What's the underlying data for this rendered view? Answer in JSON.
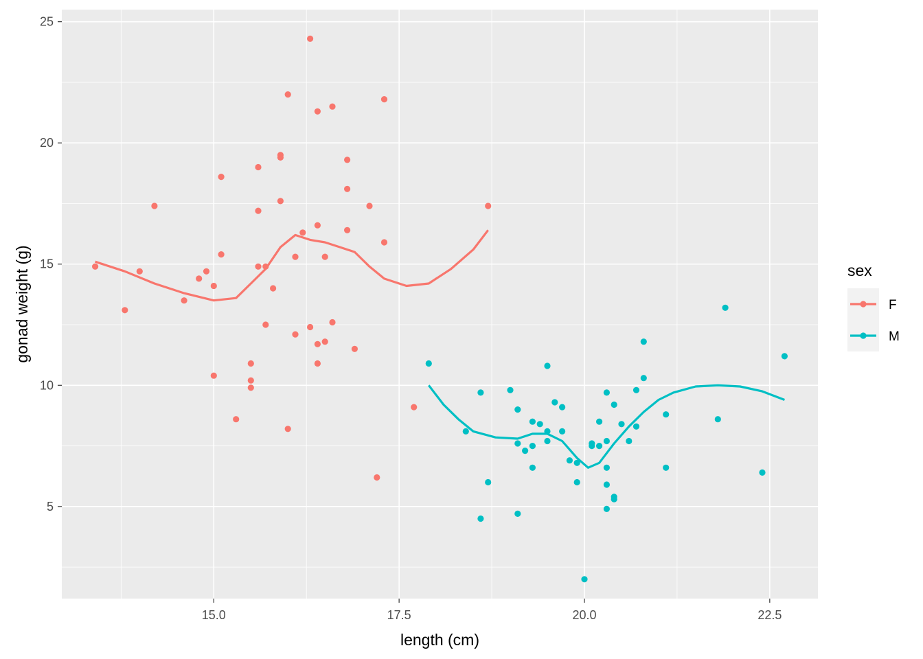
{
  "chart_data": {
    "type": "scatter",
    "xlabel": "length (cm)",
    "ylabel": "gonad weight (g)",
    "xlim": [
      12.95,
      23.15
    ],
    "ylim": [
      1.2,
      25.5
    ],
    "x_major_ticks": [
      15.0,
      17.5,
      20.0,
      22.5
    ],
    "x_tick_labels": [
      "15.0",
      "17.5",
      "20.0",
      "22.5"
    ],
    "x_minor_ticks": [
      13.75,
      16.25,
      18.75,
      21.25
    ],
    "y_major_ticks": [
      5,
      10,
      15,
      20,
      25
    ],
    "y_tick_labels": [
      "5",
      "10",
      "15",
      "20",
      "25"
    ],
    "y_minor_ticks": [
      2.5,
      7.5,
      12.5,
      17.5,
      22.5
    ],
    "grid": true,
    "panel_background": "#ebebeb",
    "legend": {
      "title": "sex",
      "placement": "right",
      "entries": [
        "F",
        "M"
      ]
    },
    "series": [
      {
        "name": "F",
        "color": "#F8766D",
        "points": [
          [
            13.4,
            14.9
          ],
          [
            13.8,
            13.1
          ],
          [
            14.0,
            14.7
          ],
          [
            14.2,
            17.4
          ],
          [
            14.6,
            13.5
          ],
          [
            14.8,
            14.4
          ],
          [
            14.9,
            14.7
          ],
          [
            15.0,
            14.1
          ],
          [
            15.0,
            10.4
          ],
          [
            15.1,
            18.6
          ],
          [
            15.1,
            15.4
          ],
          [
            15.3,
            8.6
          ],
          [
            15.5,
            10.9
          ],
          [
            15.5,
            10.2
          ],
          [
            15.5,
            9.9
          ],
          [
            15.6,
            19.0
          ],
          [
            15.6,
            17.2
          ],
          [
            15.6,
            14.9
          ],
          [
            15.7,
            14.9
          ],
          [
            15.7,
            12.5
          ],
          [
            15.8,
            14.0
          ],
          [
            15.9,
            19.5
          ],
          [
            15.9,
            19.4
          ],
          [
            15.9,
            17.6
          ],
          [
            16.0,
            22.0
          ],
          [
            16.0,
            8.2
          ],
          [
            16.1,
            15.3
          ],
          [
            16.1,
            12.1
          ],
          [
            16.2,
            16.3
          ],
          [
            16.3,
            24.3
          ],
          [
            16.3,
            12.4
          ],
          [
            16.4,
            21.3
          ],
          [
            16.4,
            16.6
          ],
          [
            16.4,
            11.7
          ],
          [
            16.4,
            10.9
          ],
          [
            16.5,
            15.3
          ],
          [
            16.5,
            11.8
          ],
          [
            16.6,
            21.5
          ],
          [
            16.6,
            12.6
          ],
          [
            16.8,
            19.3
          ],
          [
            16.8,
            18.1
          ],
          [
            16.8,
            16.4
          ],
          [
            16.9,
            11.5
          ],
          [
            17.1,
            17.4
          ],
          [
            17.2,
            6.2
          ],
          [
            17.3,
            21.8
          ],
          [
            17.3,
            15.9
          ],
          [
            17.7,
            9.1
          ],
          [
            18.7,
            17.4
          ]
        ],
        "smooth": [
          [
            13.4,
            15.1
          ],
          [
            13.8,
            14.7
          ],
          [
            14.2,
            14.2
          ],
          [
            14.6,
            13.8
          ],
          [
            15.0,
            13.5
          ],
          [
            15.3,
            13.6
          ],
          [
            15.5,
            14.2
          ],
          [
            15.7,
            14.8
          ],
          [
            15.9,
            15.7
          ],
          [
            16.1,
            16.2
          ],
          [
            16.3,
            16.0
          ],
          [
            16.5,
            15.9
          ],
          [
            16.7,
            15.7
          ],
          [
            16.9,
            15.5
          ],
          [
            17.1,
            14.9
          ],
          [
            17.3,
            14.4
          ],
          [
            17.6,
            14.1
          ],
          [
            17.9,
            14.2
          ],
          [
            18.2,
            14.8
          ],
          [
            18.5,
            15.6
          ],
          [
            18.7,
            16.4
          ]
        ]
      },
      {
        "name": "M",
        "color": "#00BFC4",
        "points": [
          [
            17.9,
            10.9
          ],
          [
            18.4,
            8.1
          ],
          [
            18.6,
            9.7
          ],
          [
            18.6,
            4.5
          ],
          [
            18.7,
            6.0
          ],
          [
            19.0,
            9.8
          ],
          [
            19.1,
            9.0
          ],
          [
            19.1,
            7.6
          ],
          [
            19.1,
            4.7
          ],
          [
            19.2,
            7.3
          ],
          [
            19.3,
            8.5
          ],
          [
            19.3,
            7.5
          ],
          [
            19.3,
            6.6
          ],
          [
            19.4,
            8.4
          ],
          [
            19.5,
            10.8
          ],
          [
            19.5,
            8.1
          ],
          [
            19.5,
            7.7
          ],
          [
            19.6,
            9.3
          ],
          [
            19.7,
            9.1
          ],
          [
            19.7,
            8.1
          ],
          [
            19.8,
            6.9
          ],
          [
            19.9,
            6.8
          ],
          [
            19.9,
            6.0
          ],
          [
            20.0,
            2.0
          ],
          [
            20.1,
            7.6
          ],
          [
            20.1,
            7.5
          ],
          [
            20.2,
            8.5
          ],
          [
            20.2,
            7.5
          ],
          [
            20.3,
            9.7
          ],
          [
            20.3,
            7.7
          ],
          [
            20.3,
            6.6
          ],
          [
            20.3,
            5.9
          ],
          [
            20.3,
            4.9
          ],
          [
            20.4,
            9.2
          ],
          [
            20.4,
            5.4
          ],
          [
            20.4,
            5.3
          ],
          [
            20.5,
            8.4
          ],
          [
            20.6,
            7.7
          ],
          [
            20.7,
            9.8
          ],
          [
            20.7,
            8.3
          ],
          [
            20.8,
            11.8
          ],
          [
            20.8,
            10.3
          ],
          [
            21.1,
            8.8
          ],
          [
            21.1,
            6.6
          ],
          [
            21.8,
            8.6
          ],
          [
            21.9,
            13.2
          ],
          [
            22.4,
            6.4
          ],
          [
            22.7,
            11.2
          ]
        ],
        "smooth": [
          [
            17.9,
            10.0
          ],
          [
            18.1,
            9.2
          ],
          [
            18.3,
            8.6
          ],
          [
            18.5,
            8.1
          ],
          [
            18.8,
            7.85
          ],
          [
            19.1,
            7.8
          ],
          [
            19.3,
            8.0
          ],
          [
            19.5,
            8.0
          ],
          [
            19.7,
            7.7
          ],
          [
            19.9,
            7.0
          ],
          [
            20.05,
            6.6
          ],
          [
            20.2,
            6.8
          ],
          [
            20.4,
            7.6
          ],
          [
            20.6,
            8.3
          ],
          [
            20.8,
            8.9
          ],
          [
            21.0,
            9.4
          ],
          [
            21.2,
            9.7
          ],
          [
            21.5,
            9.95
          ],
          [
            21.8,
            10.0
          ],
          [
            22.1,
            9.95
          ],
          [
            22.4,
            9.75
          ],
          [
            22.7,
            9.4
          ]
        ]
      }
    ]
  }
}
